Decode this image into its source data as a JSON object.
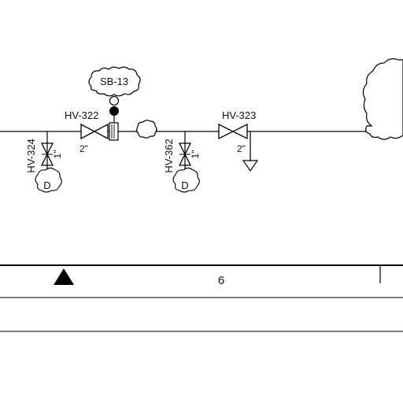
{
  "labels": {
    "sb13": "SB-13",
    "hv322": "HV-322",
    "hv323": "HV-323",
    "hv324": "HV-324",
    "hv362": "HV-362",
    "size_hv322": "2\"",
    "size_hv323": "2\"",
    "size_hv324": "1\"",
    "size_hv362": "1\"",
    "drain_left": "D",
    "drain_right": "D"
  },
  "title_block": {
    "cell_value": "6"
  }
}
